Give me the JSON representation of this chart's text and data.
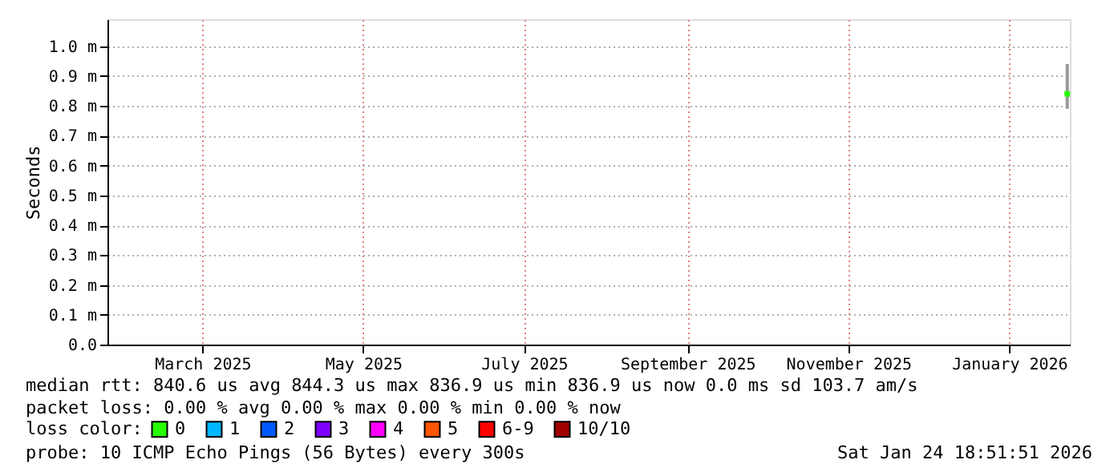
{
  "chart_data": {
    "type": "scatter",
    "ylabel": "Seconds",
    "x": [
      "2026-01-23"
    ],
    "xlim": [
      "2025-01-24",
      "2026-01-24"
    ],
    "xticks": [
      {
        "value": "2025-03-01",
        "label": "March 2025"
      },
      {
        "value": "2025-05-01",
        "label": "May 2025"
      },
      {
        "value": "2025-07-01",
        "label": "July 2025"
      },
      {
        "value": "2025-09-01",
        "label": "September 2025"
      },
      {
        "value": "2025-11-01",
        "label": "November 2025"
      },
      {
        "value": "2026-01-01",
        "label": "January 2026"
      }
    ],
    "ylim": [
      0,
      1.09
    ],
    "yticks": [
      {
        "value": 0,
        "label": "0.0"
      },
      {
        "value": 0.1,
        "label": "0.1 m"
      },
      {
        "value": 0.2,
        "label": "0.2 m"
      },
      {
        "value": 0.3,
        "label": "0.3 m"
      },
      {
        "value": 0.4,
        "label": "0.4 m"
      },
      {
        "value": 0.5,
        "label": "0.5 m"
      },
      {
        "value": 0.6,
        "label": "0.6 m"
      },
      {
        "value": 0.7,
        "label": "0.7 m"
      },
      {
        "value": 0.8,
        "label": "0.8 m"
      },
      {
        "value": 0.9,
        "label": "0.9 m"
      },
      {
        "value": 1.0,
        "label": "1.0 m"
      }
    ],
    "legend_title": "loss color:",
    "series": [
      {
        "name": "0",
        "color": "#26ff00",
        "values": [
          0.84
        ],
        "errors": [
          [
            0.79,
            0.94
          ]
        ]
      },
      {
        "name": "1",
        "color": "#00b8ff",
        "values": [
          null
        ]
      },
      {
        "name": "2",
        "color": "#0059ff",
        "values": [
          null
        ]
      },
      {
        "name": "3",
        "color": "#7e00ff",
        "values": [
          null
        ]
      },
      {
        "name": "4",
        "color": "#ff00ff",
        "values": [
          null
        ]
      },
      {
        "name": "5",
        "color": "#ff5500",
        "values": [
          null
        ]
      },
      {
        "name": "6-9",
        "color": "#ff0000",
        "values": [
          null
        ]
      },
      {
        "name": "10/10",
        "color": "#a10000",
        "values": [
          null
        ]
      }
    ],
    "marker": "square",
    "grid": true,
    "legend": "bottom",
    "annotations": [
      "median rtt:  840.6 us avg  844.3 us max  836.9 us min  836.9 us now  0.0 ms sd  103.7   am/s",
      "packet loss: 0.00 % avg  0.00 % max  0.00 % min  0.00 % now",
      "probe:       10 ICMP Echo Pings (56 Bytes) every 300s",
      "Sat Jan 24 18:51:51 2026"
    ]
  }
}
